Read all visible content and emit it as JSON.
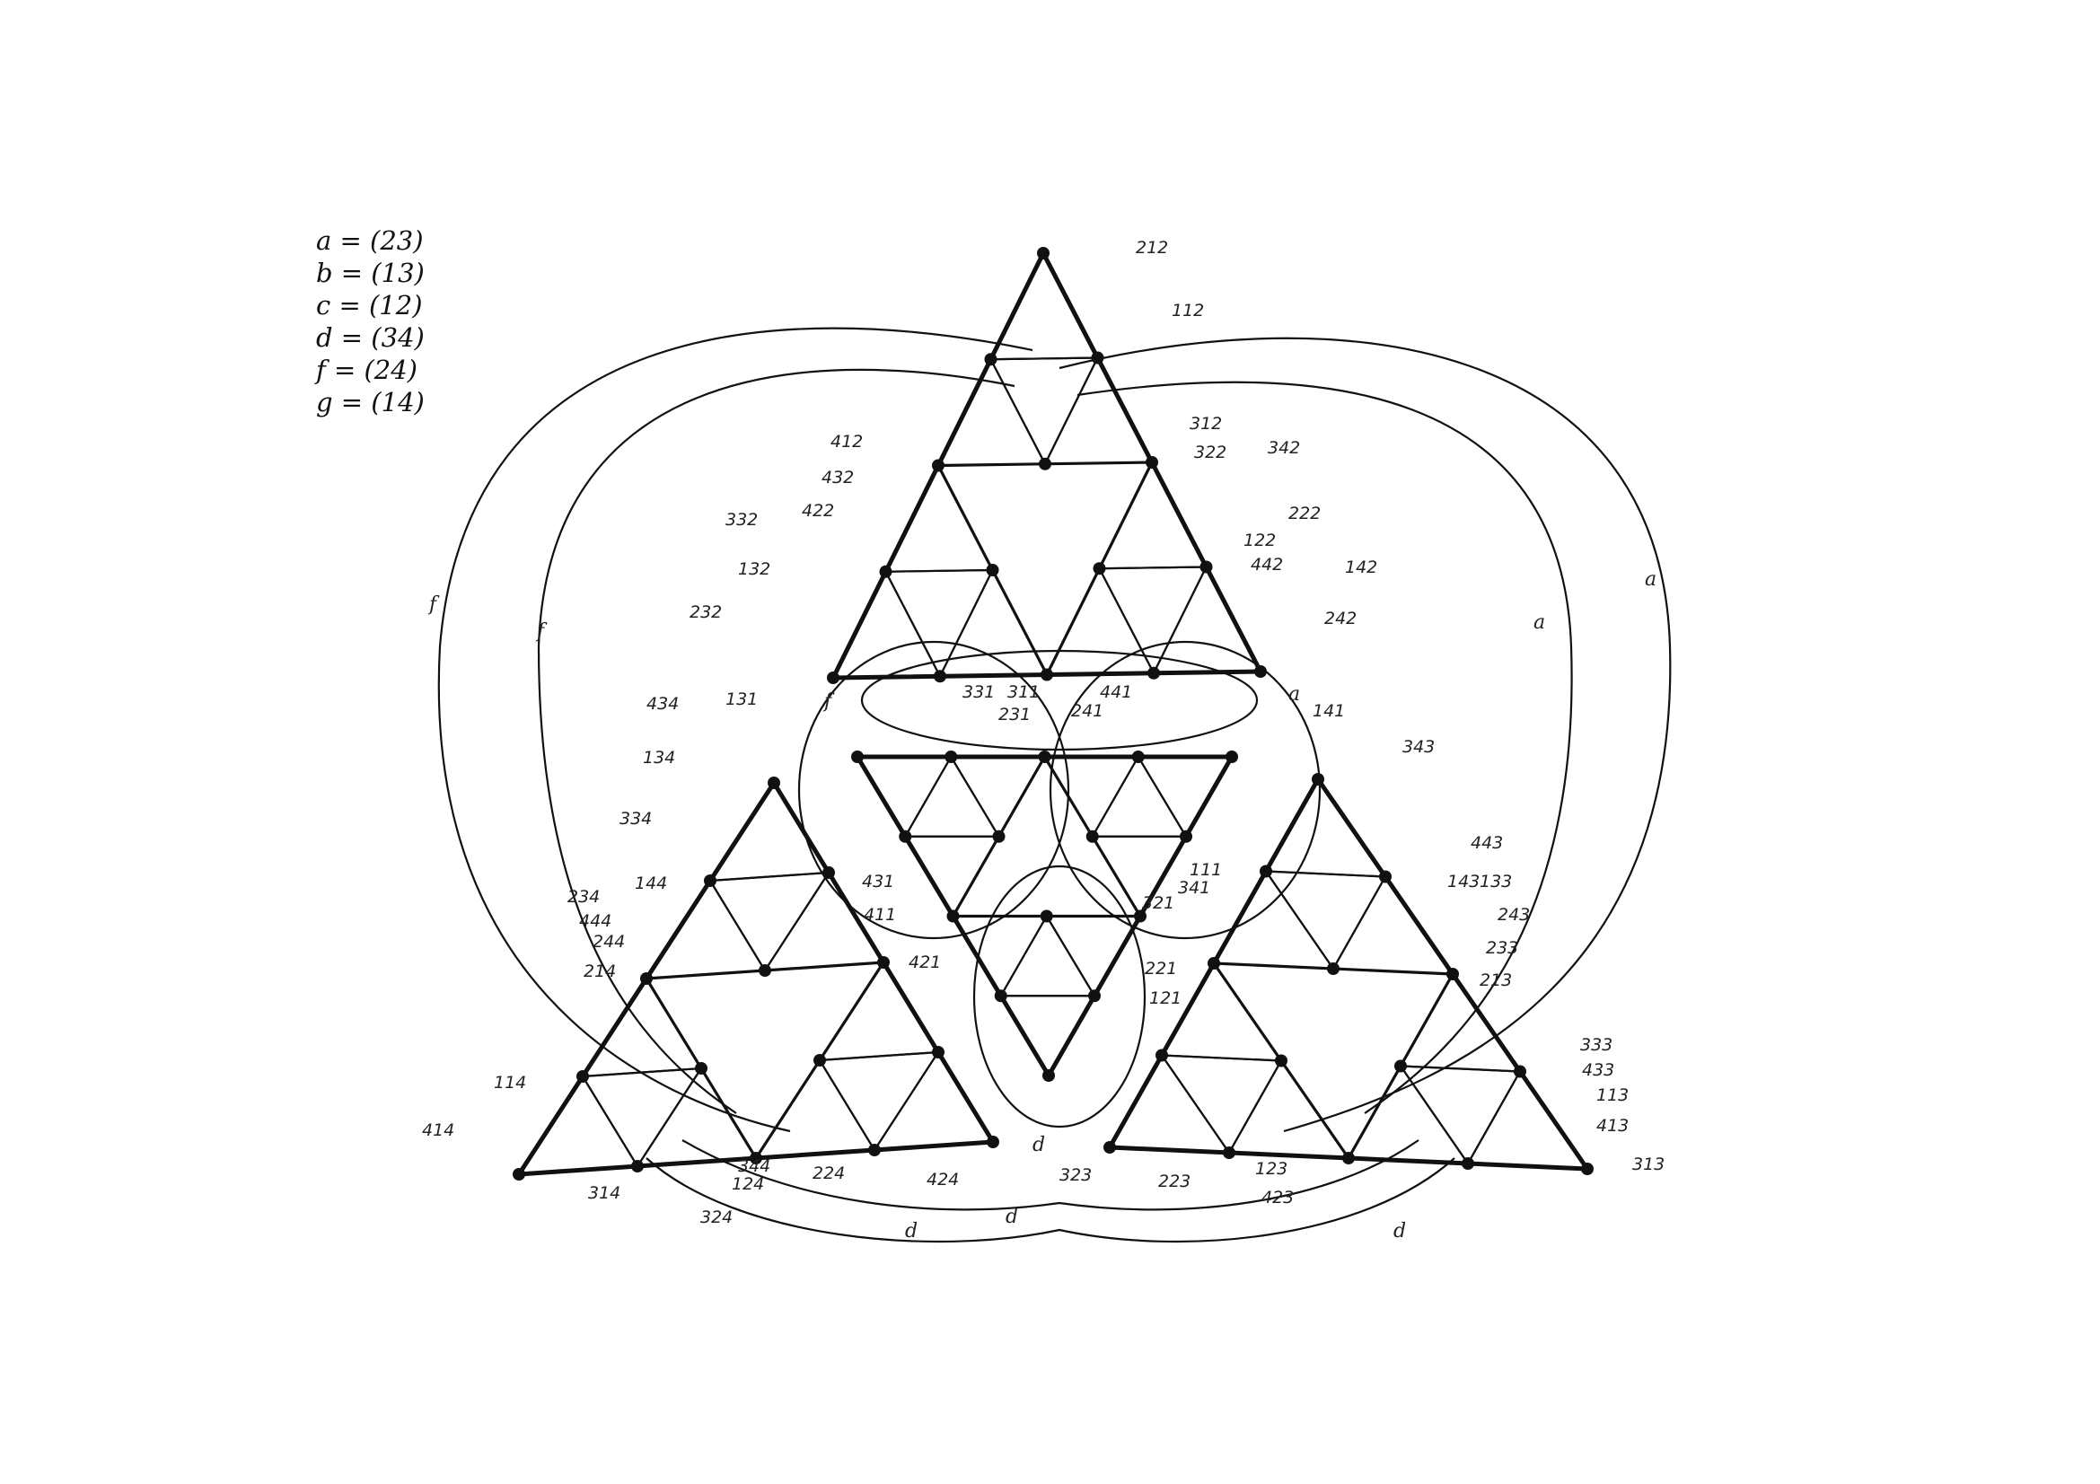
{
  "legend": [
    {
      "letter": "a",
      "text": "a = (23)"
    },
    {
      "letter": "b",
      "text": "b = (13)"
    },
    {
      "letter": "c",
      "text": "c = (12)"
    },
    {
      "letter": "d",
      "text": "d = (34)"
    },
    {
      "letter": "f",
      "text": "f = (24)"
    },
    {
      "letter": "g",
      "text": "g = (14)"
    }
  ],
  "node_labels": [
    "212",
    "112",
    "312",
    "322",
    "342",
    "222",
    "122",
    "442",
    "142",
    "242",
    "412",
    "432",
    "422",
    "332",
    "132",
    "232",
    "331",
    "311",
    "231",
    "241",
    "441",
    "141",
    "131",
    "434",
    "134",
    "334",
    "144",
    "234",
    "444",
    "244",
    "214",
    "114",
    "414",
    "314",
    "324",
    "344",
    "124",
    "224",
    "424",
    "343",
    "443",
    "143",
    "133",
    "243",
    "233",
    "213",
    "333",
    "433",
    "113",
    "413",
    "313",
    "323",
    "223",
    "123",
    "423",
    "431",
    "411",
    "421",
    "341",
    "111",
    "321",
    "221",
    "121"
  ],
  "outer_edge_letters": [
    "f",
    "f",
    "a",
    "a",
    "d",
    "d",
    "d",
    "a",
    "d",
    "f"
  ]
}
